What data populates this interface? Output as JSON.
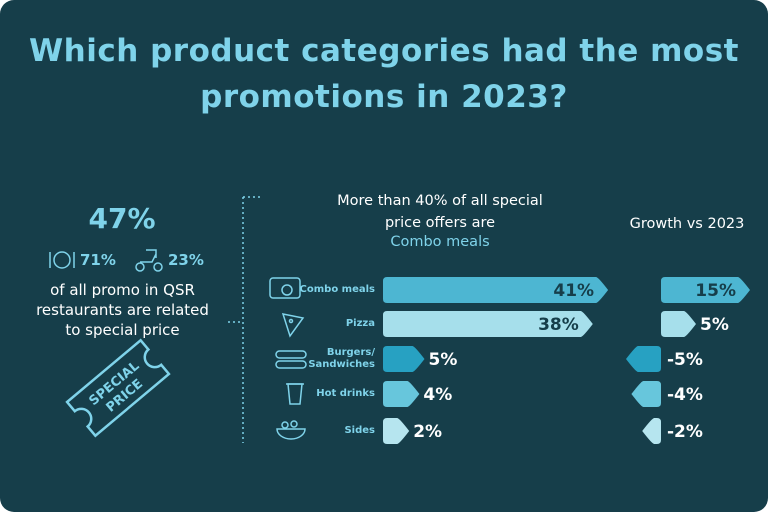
{
  "chart_data": {
    "type": "bar",
    "orientation": "horizontal",
    "title": "Which product categories had the most promotions in 2023?",
    "subtitle": "More than 40% of all special price offers are",
    "subtitle_highlight": "Combo meals",
    "categories": [
      "Combo meals",
      "Pizza",
      "Burgers/ Sandwiches",
      "Hot drinks",
      "Sides"
    ],
    "values": [
      41,
      38,
      5,
      4,
      2
    ],
    "value_labels": [
      "41%",
      "38%",
      "5%",
      "4%",
      "2%"
    ],
    "colors": [
      "#4db6d2",
      "#a6dfeb",
      "#27a1c2",
      "#67c6dc",
      "#b6e5ef"
    ],
    "growth": {
      "title": "Growth vs 2023",
      "values": [
        15,
        5,
        -5,
        -4,
        -2
      ],
      "value_labels": [
        "15%",
        "5%",
        "-5%",
        "-4%",
        "-2%"
      ]
    },
    "summary": {
      "share_label": "47%",
      "dine_in_label": "71%",
      "delivery_label": "23%",
      "text": "of all promo in QSR restaurants are related to special price",
      "badge_lines": [
        "SPECIAL",
        "PRICE"
      ]
    }
  }
}
